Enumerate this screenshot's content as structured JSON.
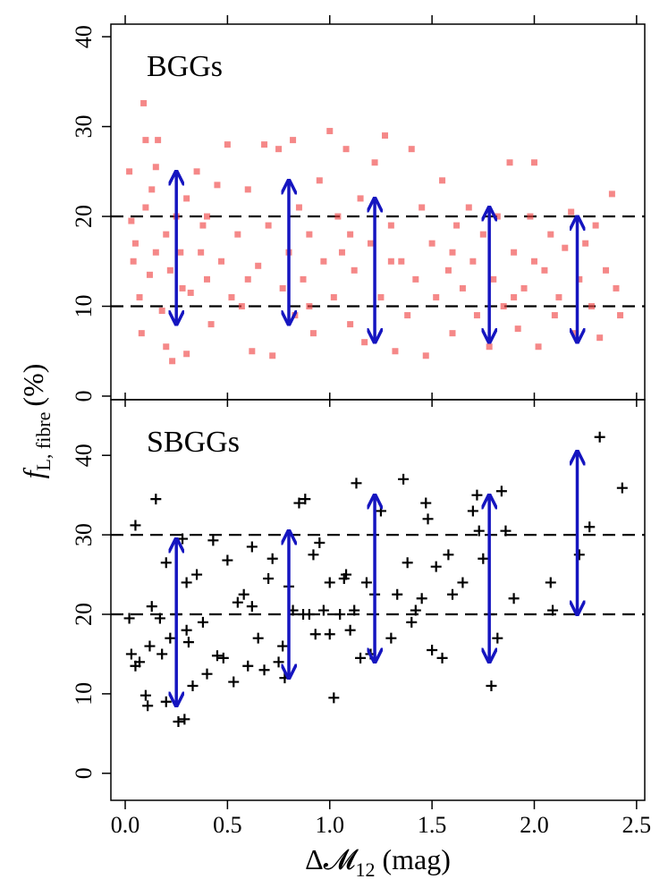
{
  "chart_data": [
    {
      "type": "scatter",
      "label": "BGGs",
      "color": "#f04848",
      "marker": "square",
      "ylabel": {
        "symbol": "f",
        "subscript": "L, fibre",
        "unit": "(%)"
      },
      "xlim": [
        -0.07,
        2.54
      ],
      "xticks": [
        0,
        0.5,
        1,
        1.5,
        2,
        2.5
      ],
      "ylim": [
        -0.4,
        41.4
      ],
      "yticks": [
        0,
        10,
        20,
        30,
        40
      ],
      "hlines": [
        10,
        20
      ],
      "arrows": [
        {
          "x": 0.25,
          "low": 8,
          "high": 25
        },
        {
          "x": 0.8,
          "low": 8,
          "high": 24
        },
        {
          "x": 1.22,
          "low": 6,
          "high": 22
        },
        {
          "x": 1.78,
          "low": 6,
          "high": 21
        },
        {
          "x": 2.21,
          "low": 6,
          "high": 20
        }
      ],
      "arrow_color": "#1515c0",
      "x": [
        0.02,
        0.03,
        0.05,
        0.04,
        0.07,
        0.08,
        0.1,
        0.09,
        0.1,
        0.12,
        0.13,
        0.15,
        0.16,
        0.18,
        0.2,
        0.2,
        0.22,
        0.23,
        0.25,
        0.27,
        0.28,
        0.3,
        0.3,
        0.32,
        0.35,
        0.37,
        0.38,
        0.4,
        0.42,
        0.45,
        0.47,
        0.5,
        0.52,
        0.55,
        0.57,
        0.6,
        0.62,
        0.65,
        0.68,
        0.7,
        0.72,
        0.75,
        0.77,
        0.8,
        0.82,
        0.83,
        0.85,
        0.87,
        0.9,
        0.92,
        0.95,
        0.97,
        1.0,
        1.02,
        1.04,
        1.06,
        1.08,
        1.1,
        1.12,
        1.15,
        1.17,
        1.2,
        1.22,
        1.25,
        1.27,
        1.3,
        1.32,
        1.35,
        1.38,
        1.4,
        1.42,
        1.45,
        1.47,
        1.5,
        1.52,
        1.55,
        1.58,
        1.6,
        1.62,
        1.65,
        1.68,
        1.7,
        1.72,
        1.75,
        1.78,
        1.8,
        1.82,
        1.85,
        1.88,
        1.9,
        1.92,
        1.95,
        1.98,
        2.0,
        2.02,
        2.05,
        2.08,
        2.1,
        2.12,
        2.15,
        2.18,
        2.2,
        2.22,
        2.25,
        2.28,
        2.3,
        2.32,
        2.35,
        2.38,
        2.4,
        2.42,
        0.6,
        0.9,
        1.3,
        0.4,
        1.6,
        2.0,
        0.15,
        1.1,
        1.9
      ],
      "values": [
        25,
        19.5,
        17,
        15,
        11,
        7,
        21,
        32.6,
        28.5,
        13.5,
        23,
        25.5,
        28.5,
        9.5,
        18,
        5.5,
        14,
        3.9,
        20,
        16,
        12,
        4.7,
        22,
        11.5,
        25,
        16,
        19,
        13,
        8,
        23.5,
        15,
        28,
        11,
        18,
        10,
        23,
        5,
        14.5,
        28,
        19,
        4.5,
        27.5,
        12,
        16,
        28.5,
        9,
        21,
        13,
        18,
        7,
        24,
        15,
        29.5,
        11,
        20,
        16,
        27.5,
        8,
        14,
        22,
        6,
        17,
        26,
        11,
        29,
        19,
        5,
        15,
        9,
        27.5,
        13,
        21,
        4.5,
        17,
        11,
        24,
        14,
        7,
        19,
        12,
        21,
        15,
        9,
        18,
        5.5,
        13,
        20,
        10,
        26,
        16,
        7.5,
        12,
        20,
        26,
        5.5,
        14,
        18,
        9,
        11,
        16.5,
        20.5,
        7,
        13,
        17,
        10,
        19,
        6.5,
        14,
        22.5,
        12,
        9,
        13,
        10,
        15,
        20,
        16,
        15,
        16,
        18,
        11
      ]
    },
    {
      "type": "scatter",
      "label": "SBGGs",
      "color": "#000000",
      "marker": "plus",
      "xlabel": {
        "symbol": "Δ𝓜",
        "subscript": "12",
        "unit": "(mag)"
      },
      "xlim": [
        -0.07,
        2.54
      ],
      "xticks": [
        {
          "value": 0,
          "label": "0.0"
        },
        0.5,
        {
          "value": 1,
          "label": "1.0"
        },
        1.5,
        {
          "value": 2,
          "label": "2.0"
        },
        2.5
      ],
      "ylim": [
        -3.4,
        47
      ],
      "yticks": [
        0,
        10,
        20,
        30,
        40
      ],
      "hlines": [
        20,
        30
      ],
      "arrows": [
        {
          "x": 0.25,
          "low": 8.5,
          "high": 29.5
        },
        {
          "x": 0.8,
          "low": 12,
          "high": 30.5
        },
        {
          "x": 1.22,
          "low": 14,
          "high": 35
        },
        {
          "x": 1.78,
          "low": 14,
          "high": 35
        },
        {
          "x": 2.21,
          "low": 20,
          "high": 40.5
        }
      ],
      "arrow_color": "#1515c0",
      "x": [
        0.02,
        0.03,
        0.05,
        0.05,
        0.07,
        0.1,
        0.11,
        0.12,
        0.13,
        0.15,
        0.17,
        0.18,
        0.2,
        0.2,
        0.22,
        0.25,
        0.26,
        0.28,
        0.29,
        0.3,
        0.31,
        0.33,
        0.35,
        0.38,
        0.4,
        0.43,
        0.45,
        0.48,
        0.5,
        0.53,
        0.55,
        0.58,
        0.6,
        0.62,
        0.65,
        0.68,
        0.7,
        0.72,
        0.75,
        0.77,
        0.78,
        0.8,
        0.82,
        0.85,
        0.87,
        0.88,
        0.9,
        0.92,
        0.93,
        0.95,
        0.97,
        1.0,
        1.02,
        1.05,
        1.07,
        1.08,
        1.1,
        1.12,
        1.13,
        1.15,
        1.18,
        1.2,
        1.22,
        1.25,
        1.3,
        1.33,
        1.36,
        1.38,
        1.4,
        1.42,
        1.45,
        1.47,
        1.48,
        1.5,
        1.52,
        1.55,
        1.58,
        1.6,
        1.65,
        1.7,
        1.72,
        1.73,
        1.75,
        1.78,
        1.79,
        1.82,
        1.84,
        1.86,
        1.9,
        2.08,
        2.09,
        2.22,
        2.27,
        2.32,
        2.43,
        1.0,
        0.62,
        0.3
      ],
      "values": [
        19.5,
        15,
        31.2,
        13.5,
        14,
        9.8,
        8.5,
        16,
        21,
        34.5,
        19.5,
        15,
        26.5,
        9,
        17,
        20,
        6.5,
        29.5,
        6.8,
        24,
        16.5,
        11,
        25,
        19,
        12.5,
        29.3,
        14.8,
        14.5,
        26.8,
        11.5,
        21.5,
        22.5,
        13.5,
        28.5,
        17,
        13,
        24.5,
        27,
        14,
        16,
        12,
        23.5,
        20.5,
        34,
        20,
        34.5,
        20,
        27.5,
        17.5,
        29,
        20.5,
        24,
        9.5,
        20,
        24.5,
        25,
        18,
        20.5,
        36.5,
        14.5,
        24,
        15,
        22.5,
        33,
        17,
        22.5,
        37,
        26.5,
        19,
        20.5,
        22,
        34,
        32,
        15.5,
        26,
        14.5,
        27.5,
        22.5,
        24,
        33,
        35,
        30.5,
        27,
        20,
        11,
        17,
        35.5,
        30.5,
        22,
        24,
        20.5,
        27.5,
        31,
        42.3,
        35.9,
        17.5,
        21,
        18
      ]
    }
  ]
}
